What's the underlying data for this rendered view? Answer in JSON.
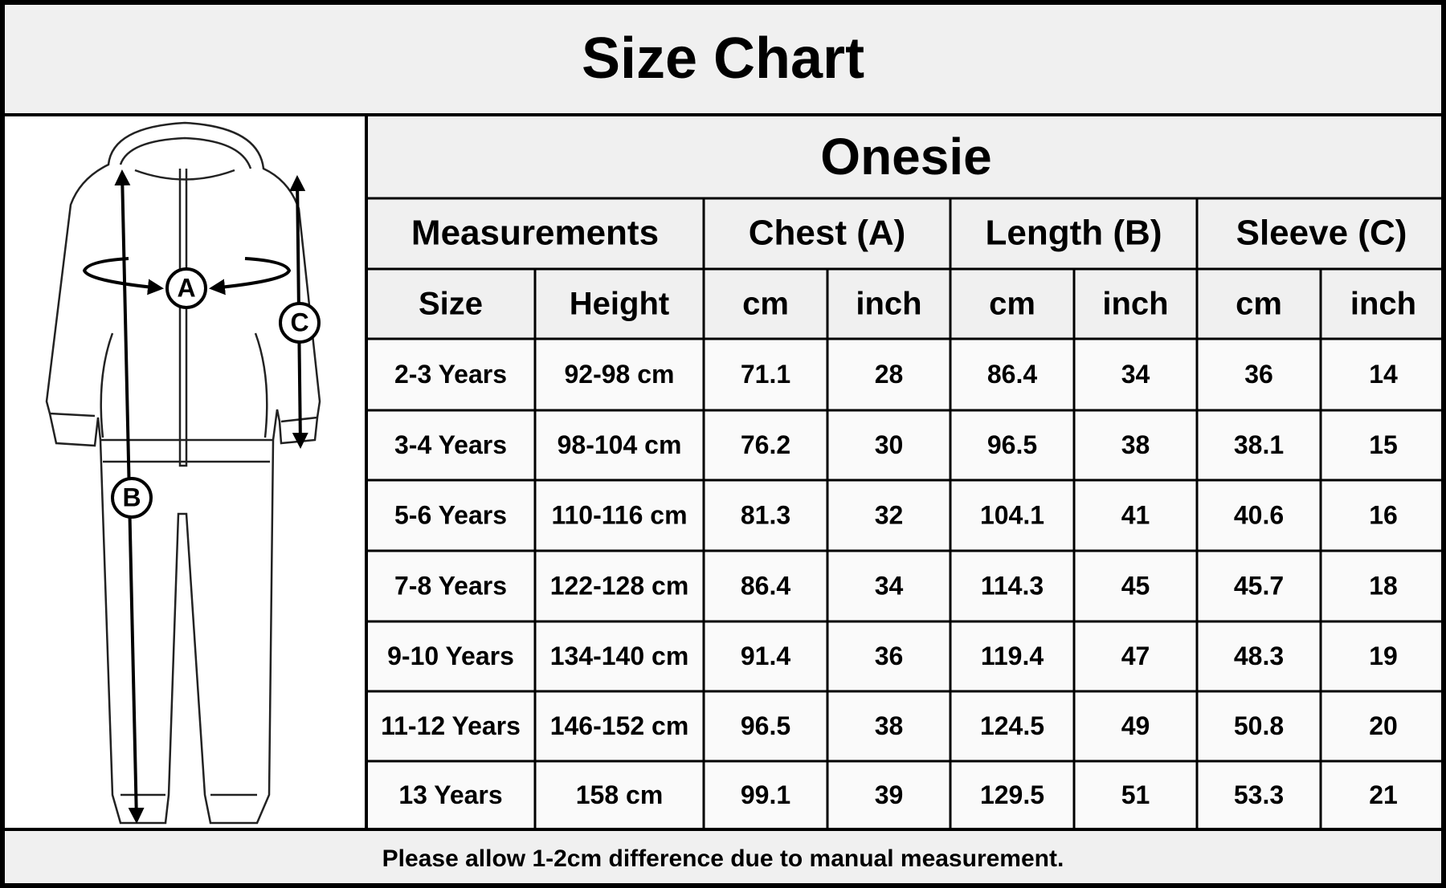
{
  "header": {
    "title": "Size Chart"
  },
  "figure": {
    "labels": [
      "A",
      "B",
      "C"
    ]
  },
  "table": {
    "title": "Onesie",
    "group_headers": [
      "Measurements",
      "Chest (A)",
      "Length (B)",
      "Sleeve (C)"
    ],
    "sub_headers": [
      "Size",
      "Height",
      "cm",
      "inch",
      "cm",
      "inch",
      "cm",
      "inch"
    ],
    "rows": [
      [
        "2-3 Years",
        "92-98 cm",
        "71.1",
        "28",
        "86.4",
        "34",
        "36",
        "14"
      ],
      [
        "3-4 Years",
        "98-104 cm",
        "76.2",
        "30",
        "96.5",
        "38",
        "38.1",
        "15"
      ],
      [
        "5-6 Years",
        "110-116 cm",
        "81.3",
        "32",
        "104.1",
        "41",
        "40.6",
        "16"
      ],
      [
        "7-8 Years",
        "122-128 cm",
        "86.4",
        "34",
        "114.3",
        "45",
        "45.7",
        "18"
      ],
      [
        "9-10 Years",
        "134-140 cm",
        "91.4",
        "36",
        "119.4",
        "47",
        "48.3",
        "19"
      ],
      [
        "11-12 Years",
        "146-152 cm",
        "96.5",
        "38",
        "124.5",
        "49",
        "50.8",
        "20"
      ],
      [
        "13 Years",
        "158 cm",
        "99.1",
        "39",
        "129.5",
        "51",
        "53.3",
        "21"
      ]
    ]
  },
  "footer": {
    "note": "Please allow 1-2cm difference due to manual measurement."
  }
}
